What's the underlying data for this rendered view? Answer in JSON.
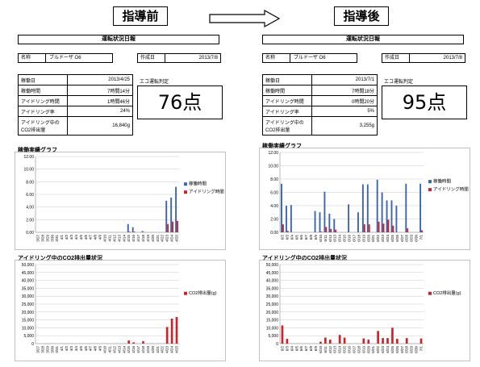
{
  "headers": {
    "before": "指導前",
    "after": "指導後"
  },
  "before": {
    "report_title": "運転状況日報",
    "name_label": "名称",
    "name_value": "ブルドーザ O6",
    "created_label": "作成日",
    "created_value": "2013/7/8",
    "stats": [
      {
        "label": "稼働日",
        "value": "2013/4/25"
      },
      {
        "label": "稼働時間",
        "value": "7時間14分"
      },
      {
        "label": "アイドリング時間",
        "value": "1時間46分"
      },
      {
        "label": "アイドリング率",
        "value": "24%"
      },
      {
        "label": "アイドリング中の CO2排出量",
        "value": "16,840g"
      }
    ],
    "eco_label": "エコ運転判定",
    "score": "76点"
  },
  "after": {
    "report_title": "運転状況日報",
    "name_label": "名称",
    "name_value": "ブルドーザ O6",
    "created_label": "作成日",
    "created_value": "2013/7/8",
    "stats": [
      {
        "label": "稼働日",
        "value": "2013/7/1"
      },
      {
        "label": "稼働時間",
        "value": "7時間18分"
      },
      {
        "label": "アイドリング時間",
        "value": "0時間20分"
      },
      {
        "label": "アイドリング率",
        "value": "5%"
      },
      {
        "label": "アイドリング中の CO2排出量",
        "value": "3,255g"
      }
    ],
    "eco_label": "エコ運転判定",
    "score": "95点"
  },
  "colors": {
    "blue": "#3c64b4",
    "red": "#c8242a",
    "grid": "#c8c8c8"
  },
  "chart_data": [
    {
      "type": "bar",
      "title": "稼働実績グラフ",
      "ylim": [
        0,
        12
      ],
      "yticks": [
        "0.00",
        "2.00",
        "4.00",
        "6.00",
        "8.00",
        "10.00",
        "12.00"
      ],
      "categories": [
        "3/27",
        "3/28",
        "3/29",
        "3/30",
        "3/31",
        "4/1",
        "4/2",
        "4/3",
        "4/4",
        "4/5",
        "4/6",
        "4/7",
        "4/8",
        "4/9",
        "4/10",
        "4/11",
        "4/12",
        "4/13",
        "4/14",
        "4/15",
        "4/16",
        "4/17",
        "4/18",
        "4/19",
        "4/20",
        "4/21",
        "4/22",
        "4/23",
        "4/24",
        "4/25"
      ],
      "series": [
        {
          "name": "稼働時間",
          "color": "#3c64b4",
          "values": [
            0,
            0,
            0,
            0,
            0,
            0,
            0,
            0,
            0,
            0,
            0,
            0,
            0,
            0,
            0,
            0,
            0,
            0,
            0,
            1.3,
            0.8,
            0,
            0.2,
            0,
            0,
            0,
            0,
            5.0,
            5.5,
            7.2
          ]
        },
        {
          "name": "アイドリング時間",
          "color": "#c8242a",
          "values": [
            0,
            0,
            0,
            0,
            0,
            0,
            0,
            0,
            0,
            0,
            0,
            0,
            0,
            0,
            0,
            0,
            0,
            0,
            0,
            0.1,
            0.1,
            0,
            0.05,
            0,
            0,
            0,
            0,
            1.3,
            1.7,
            1.8
          ]
        }
      ]
    },
    {
      "type": "bar",
      "title": "アイドリング中のCO2排出量状況",
      "ylim": [
        0,
        50000
      ],
      "yticks": [
        "0",
        "5,000",
        "10,000",
        "15,000",
        "20,000",
        "25,000",
        "30,000",
        "35,000",
        "40,000",
        "45,000",
        "50,000"
      ],
      "categories": [
        "3/27",
        "3/28",
        "3/29",
        "3/30",
        "3/31",
        "4/1",
        "4/2",
        "4/3",
        "4/4",
        "4/5",
        "4/6",
        "4/7",
        "4/8",
        "4/9",
        "4/10",
        "4/11",
        "4/12",
        "4/13",
        "4/14",
        "4/15",
        "4/16",
        "4/17",
        "4/18",
        "4/19",
        "4/20",
        "4/21",
        "4/22",
        "4/23",
        "4/24",
        "4/25"
      ],
      "series": [
        {
          "name": "CO2排出量(g)",
          "color": "#c8242a",
          "values": [
            0,
            0,
            0,
            0,
            0,
            0,
            0,
            0,
            0,
            0,
            0,
            0,
            0,
            0,
            0,
            0,
            0,
            0,
            0,
            2000,
            800,
            0,
            1500,
            0,
            0,
            0,
            0,
            10500,
            15800,
            16840
          ]
        }
      ]
    },
    {
      "type": "bar",
      "title": "稼働実績グラフ",
      "ylim": [
        0,
        12
      ],
      "yticks": [
        "0.00",
        "2.00",
        "4.00",
        "6.00",
        "8.00",
        "10.00",
        "12.00"
      ],
      "categories": [
        "6/2",
        "6/3",
        "6/4",
        "6/5",
        "6/6",
        "6/7",
        "6/8",
        "6/9",
        "6/10",
        "6/11",
        "6/12",
        "6/13",
        "6/14",
        "6/15",
        "6/16",
        "6/17",
        "6/18",
        "6/19",
        "6/20",
        "6/21",
        "6/22",
        "6/23",
        "6/24",
        "6/25",
        "6/26",
        "6/27",
        "6/28",
        "6/29",
        "6/30",
        "7/1"
      ],
      "series": [
        {
          "name": "稼働時間",
          "color": "#3c64b4",
          "values": [
            7.3,
            4.0,
            4.1,
            0,
            0,
            0,
            0,
            3.2,
            3.0,
            6.1,
            2.8,
            2.0,
            0,
            0,
            4.2,
            0,
            3.0,
            7.2,
            7.2,
            0,
            7.9,
            6.0,
            4.8,
            4.8,
            4.0,
            0,
            7.3,
            0,
            0,
            7.3
          ]
        },
        {
          "name": "アイドリング時間",
          "color": "#c8242a",
          "values": [
            1.2,
            0.2,
            0,
            0,
            0,
            0,
            0,
            0,
            0.1,
            0.8,
            0.5,
            0.4,
            0,
            0,
            0,
            0,
            0,
            1.2,
            1.2,
            0,
            1.6,
            1.3,
            1.9,
            1.0,
            0,
            0,
            0.6,
            0,
            0,
            0.3
          ]
        }
      ]
    },
    {
      "type": "bar",
      "title": "アイドリング中のCO2排出量状況",
      "ylim": [
        0,
        50000
      ],
      "yticks": [
        "0",
        "5,000",
        "10,000",
        "15,000",
        "20,000",
        "25,000",
        "30,000",
        "35,000",
        "40,000",
        "45,000",
        "50,000"
      ],
      "categories": [
        "6/2",
        "6/3",
        "6/4",
        "6/5",
        "6/6",
        "6/7",
        "6/8",
        "6/9",
        "6/10",
        "6/11",
        "6/12",
        "6/13",
        "6/14",
        "6/15",
        "6/16",
        "6/17",
        "6/18",
        "6/19",
        "6/20",
        "6/21",
        "6/22",
        "6/23",
        "6/24",
        "6/25",
        "6/26",
        "6/27",
        "6/28",
        "6/29",
        "6/30",
        "7/1"
      ],
      "series": [
        {
          "name": "CO2排出量(g)",
          "color": "#c8242a",
          "values": [
            11500,
            3000,
            0,
            0,
            0,
            0,
            0,
            0,
            1200,
            3800,
            2500,
            0,
            5500,
            3800,
            0,
            0,
            0,
            3300,
            2500,
            0,
            8000,
            3500,
            3500,
            10000,
            3000,
            0,
            3500,
            0,
            0,
            3255
          ]
        }
      ]
    }
  ]
}
